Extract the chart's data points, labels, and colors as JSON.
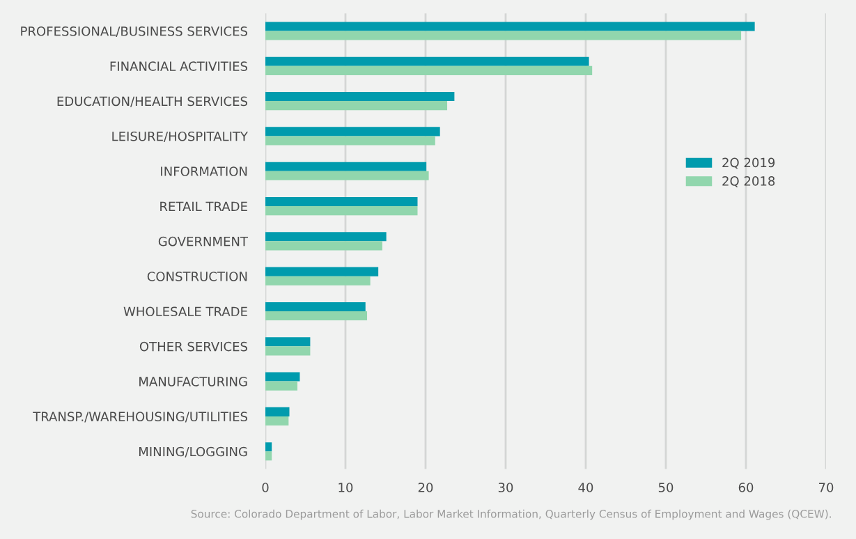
{
  "chart_data": {
    "type": "bar",
    "orientation": "horizontal",
    "categories": [
      "PROFESSIONAL/BUSINESS SERVICES",
      "FINANCIAL ACTIVITIES",
      "EDUCATION/HEALTH SERVICES",
      "LEISURE/HOSPITALITY",
      "INFORMATION",
      "RETAIL TRADE",
      "GOVERNMENT",
      "CONSTRUCTION",
      "WHOLESALE TRADE",
      "OTHER SERVICES",
      "MANUFACTURING",
      "TRANSP./WAREHOUSING/UTILITIES",
      "MINING/LOGGING"
    ],
    "series": [
      {
        "name": "2Q 2019",
        "color": "#009bad",
        "values": [
          61.1,
          40.4,
          23.6,
          21.8,
          20.1,
          19.0,
          15.1,
          14.1,
          12.5,
          5.6,
          4.3,
          3.0,
          0.8
        ]
      },
      {
        "name": "2Q 2018",
        "color": "#91d6ad",
        "values": [
          59.4,
          40.8,
          22.7,
          21.2,
          20.4,
          19.0,
          14.6,
          13.1,
          12.7,
          5.6,
          4.0,
          2.9,
          0.8
        ]
      }
    ],
    "xlim": [
      0,
      70
    ],
    "xticks": [
      0,
      10,
      20,
      30,
      40,
      50,
      60,
      70
    ],
    "grid": "x",
    "legend": "right",
    "annotations": [
      "Source: Colorado Department of Labor, Labor Market Information, Quarterly Census of Employment and Wages (QCEW)."
    ]
  }
}
